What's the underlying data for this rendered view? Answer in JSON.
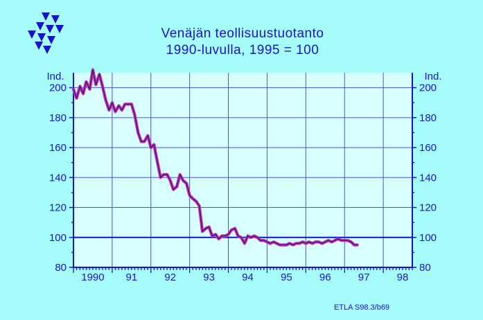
{
  "chart_data": {
    "type": "line",
    "title": "Venäjän  teollisuustuotanto",
    "subtitle": "1990-luvulla,  1995 = 100",
    "unit_label_left": "Ind.",
    "unit_label_right": "Ind.",
    "credit": "ETLA S98.3/b69",
    "ylim": [
      80,
      210
    ],
    "yticks": [
      200,
      180,
      160,
      140,
      120,
      100,
      80
    ],
    "xlim": [
      1990.0,
      1998.75
    ],
    "x_tick_labels": [
      {
        "label": "1990",
        "x": 1990.5
      },
      {
        "label": "91",
        "x": 1991.5
      },
      {
        "label": "92",
        "x": 1992.5
      },
      {
        "label": "93",
        "x": 1993.5
      },
      {
        "label": "94",
        "x": 1994.5
      },
      {
        "label": "95",
        "x": 1995.5
      },
      {
        "label": "96",
        "x": 1996.5
      },
      {
        "label": "97",
        "x": 1997.5
      },
      {
        "label": "98",
        "x": 1998.5
      }
    ],
    "reference_line": 100,
    "grid": true,
    "colors": {
      "background": "#a6fbfb",
      "plot_background": "#d8ffff",
      "axis": "#1515c8",
      "grid": "#4d4de0",
      "series_outline": "#c233e0",
      "series_core": "#4a1a2a"
    },
    "series": [
      {
        "values": [
          [
            1990.0,
            199
          ],
          [
            1990.08,
            193
          ],
          [
            1990.17,
            201
          ],
          [
            1990.25,
            196
          ],
          [
            1990.33,
            204
          ],
          [
            1990.42,
            199
          ],
          [
            1990.5,
            212
          ],
          [
            1990.58,
            202
          ],
          [
            1990.67,
            209
          ],
          [
            1990.75,
            201
          ],
          [
            1990.83,
            192
          ],
          [
            1990.92,
            185
          ],
          [
            1991.0,
            190
          ],
          [
            1991.08,
            184
          ],
          [
            1991.17,
            188
          ],
          [
            1991.25,
            185
          ],
          [
            1991.33,
            189
          ],
          [
            1991.42,
            189
          ],
          [
            1991.5,
            189
          ],
          [
            1991.58,
            182
          ],
          [
            1991.67,
            170
          ],
          [
            1991.75,
            164
          ],
          [
            1991.83,
            164
          ],
          [
            1991.92,
            168
          ],
          [
            1992.0,
            160
          ],
          [
            1992.08,
            162
          ],
          [
            1992.17,
            150
          ],
          [
            1992.25,
            140
          ],
          [
            1992.33,
            142
          ],
          [
            1992.42,
            142
          ],
          [
            1992.5,
            138
          ],
          [
            1992.58,
            132
          ],
          [
            1992.67,
            134
          ],
          [
            1992.75,
            142
          ],
          [
            1992.83,
            138
          ],
          [
            1992.92,
            136
          ],
          [
            1993.0,
            128
          ],
          [
            1993.08,
            126
          ],
          [
            1993.17,
            124
          ],
          [
            1993.25,
            121
          ],
          [
            1993.33,
            104
          ],
          [
            1993.42,
            106
          ],
          [
            1993.5,
            107
          ],
          [
            1993.58,
            101
          ],
          [
            1993.67,
            102
          ],
          [
            1993.75,
            99
          ],
          [
            1993.83,
            101
          ],
          [
            1993.92,
            101
          ],
          [
            1994.0,
            102
          ],
          [
            1994.08,
            105
          ],
          [
            1994.17,
            106
          ],
          [
            1994.25,
            101
          ],
          [
            1994.33,
            100
          ],
          [
            1994.42,
            96
          ],
          [
            1994.5,
            101
          ],
          [
            1994.58,
            100
          ],
          [
            1994.67,
            101
          ],
          [
            1994.75,
            100
          ],
          [
            1994.83,
            98
          ],
          [
            1994.92,
            98
          ],
          [
            1995.0,
            97
          ],
          [
            1995.08,
            96
          ],
          [
            1995.17,
            97
          ],
          [
            1995.25,
            96
          ],
          [
            1995.33,
            95
          ],
          [
            1995.42,
            95
          ],
          [
            1995.5,
            95
          ],
          [
            1995.58,
            96
          ],
          [
            1995.67,
            95
          ],
          [
            1995.75,
            96
          ],
          [
            1995.83,
            96
          ],
          [
            1995.92,
            97
          ],
          [
            1996.0,
            96
          ],
          [
            1996.08,
            97
          ],
          [
            1996.17,
            96
          ],
          [
            1996.25,
            97
          ],
          [
            1996.33,
            97
          ],
          [
            1996.42,
            96
          ],
          [
            1996.5,
            97
          ],
          [
            1996.58,
            98
          ],
          [
            1996.67,
            97
          ],
          [
            1996.75,
            98
          ],
          [
            1996.83,
            99
          ],
          [
            1996.92,
            98
          ],
          [
            1997.0,
            98
          ],
          [
            1997.08,
            98
          ],
          [
            1997.17,
            97
          ],
          [
            1997.25,
            95
          ],
          [
            1997.33,
            95
          ]
        ]
      }
    ]
  }
}
